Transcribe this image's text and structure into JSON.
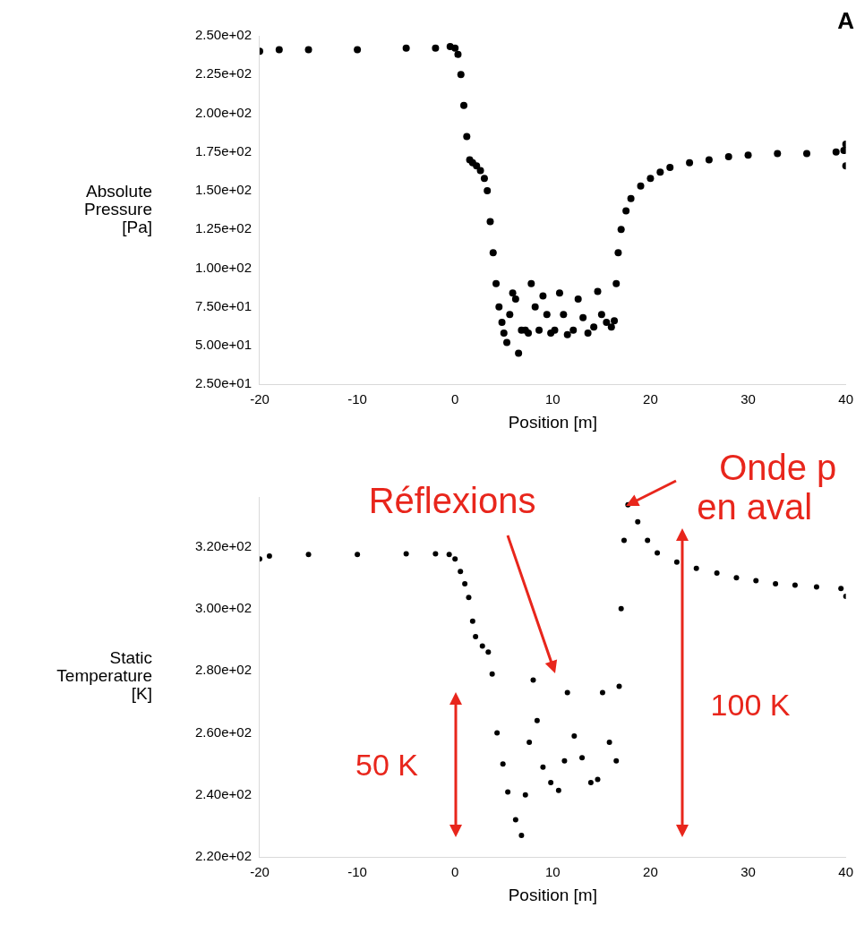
{
  "chart_data": [
    {
      "type": "scatter",
      "ylabel": "Absolute\nPressure\n[Pa]",
      "xlabel": "Position [m]",
      "marker": "circle",
      "annotations": [
        "A"
      ],
      "x": [
        -20,
        -18,
        -15,
        -10,
        -5,
        -2,
        -0.5,
        0,
        0.3,
        0.6,
        0.9,
        1.2,
        1.5,
        1.8,
        2.2,
        2.6,
        3,
        3.3,
        3.6,
        3.9,
        4.2,
        4.5,
        4.8,
        5,
        5.3,
        5.6,
        5.9,
        6.2,
        6.5,
        6.8,
        7.2,
        7.5,
        7.8,
        8.2,
        8.6,
        9,
        9.4,
        9.8,
        10.2,
        10.7,
        11.1,
        11.5,
        12.1,
        12.6,
        13.1,
        13.6,
        14.2,
        14.6,
        15,
        15.5,
        16,
        16.3,
        16.5,
        16.7,
        17,
        17.5,
        18,
        19,
        20,
        21,
        22,
        24,
        26,
        28,
        30,
        33,
        36,
        39,
        39.8,
        40,
        40
      ],
      "series": [
        {
          "color": "#000000",
          "values": [
            240,
            241,
            241,
            241,
            242,
            242,
            243,
            242,
            238,
            225,
            205,
            185,
            170,
            168,
            166,
            163,
            158,
            150,
            130,
            110,
            90,
            75,
            65,
            58,
            52,
            70,
            84,
            80,
            45,
            60,
            60,
            58,
            90,
            75,
            60,
            82,
            70,
            58,
            60,
            84,
            70,
            57,
            60,
            80,
            68,
            58,
            62,
            85,
            70,
            65,
            62,
            66,
            90,
            110,
            125,
            137,
            145,
            153,
            158,
            162,
            165,
            168,
            170,
            172,
            173,
            174,
            174,
            175,
            176,
            180,
            166
          ]
        }
      ],
      "xlim": [
        -20,
        40
      ],
      "xticks": [
        -20,
        -10,
        0,
        10,
        20,
        30,
        40
      ],
      "ylim": [
        25,
        250
      ],
      "yticks": [
        {
          "value": 25,
          "label": "2.50e+01"
        },
        {
          "value": 50,
          "label": "5.00e+01"
        },
        {
          "value": 75,
          "label": "7.50e+01"
        },
        {
          "value": 100,
          "label": "1.00e+02"
        },
        {
          "value": 125,
          "label": "1.25e+02"
        },
        {
          "value": 150,
          "label": "1.50e+02"
        },
        {
          "value": 175,
          "label": "1.75e+02"
        },
        {
          "value": 200,
          "label": "2.00e+02"
        },
        {
          "value": 225,
          "label": "2.25e+02"
        },
        {
          "value": 250,
          "label": "2.50e+02"
        }
      ]
    },
    {
      "type": "scatter",
      "ylabel": "Static\nTemperature\n[K]",
      "xlabel": "Position [m]",
      "marker": "circle",
      "annotations": [
        "Réflexions",
        {
          "text": "Onde p\nen aval",
          "x": 17.5,
          "y": 333
        },
        "50 K",
        "100 K"
      ],
      "x": [
        -20,
        -19,
        -15,
        -10,
        -5,
        -2,
        -0.6,
        0,
        0.55,
        1,
        1.4,
        1.8,
        2.1,
        2.8,
        3.4,
        3.8,
        4.3,
        4.9,
        5.4,
        6.2,
        6.8,
        7.2,
        7.6,
        8.0,
        8.4,
        9.0,
        9.8,
        10.6,
        11.2,
        11.5,
        12.2,
        13,
        13.9,
        14.6,
        15.1,
        15.8,
        16.5,
        16.8,
        17.0,
        17.3,
        17.7,
        18.7,
        19.7,
        20.7,
        22.7,
        24.7,
        26.8,
        28.8,
        30.8,
        32.8,
        34.8,
        37,
        39.5,
        40
      ],
      "series": [
        {
          "color": "#000000",
          "values": [
            316,
            317,
            317.5,
            317.5,
            317.7,
            317.7,
            317.5,
            316,
            312,
            308,
            303.6,
            296,
            291,
            288,
            286,
            279,
            260,
            250,
            241,
            232,
            227,
            240,
            257,
            277,
            264,
            249,
            244,
            241.5,
            251,
            273,
            259,
            252,
            244,
            245,
            273,
            257,
            251,
            275,
            300,
            322,
            333.5,
            328,
            322,
            318,
            315,
            313,
            311.5,
            310,
            309,
            308,
            307.6,
            307,
            306.5,
            304
          ]
        }
      ],
      "xlim": [
        -20,
        40
      ],
      "xticks": [
        -20,
        -10,
        0,
        10,
        20,
        30,
        40
      ],
      "ylim": [
        220,
        336
      ],
      "yticks": [
        {
          "value": 220,
          "label": "2.20e+02"
        },
        {
          "value": 240,
          "label": "2.40e+02"
        },
        {
          "value": 260,
          "label": "2.60e+02"
        },
        {
          "value": 280,
          "label": "2.80e+02"
        },
        {
          "value": 300,
          "label": "3.00e+02"
        },
        {
          "value": 320,
          "label": "3.20e+02"
        }
      ]
    }
  ]
}
